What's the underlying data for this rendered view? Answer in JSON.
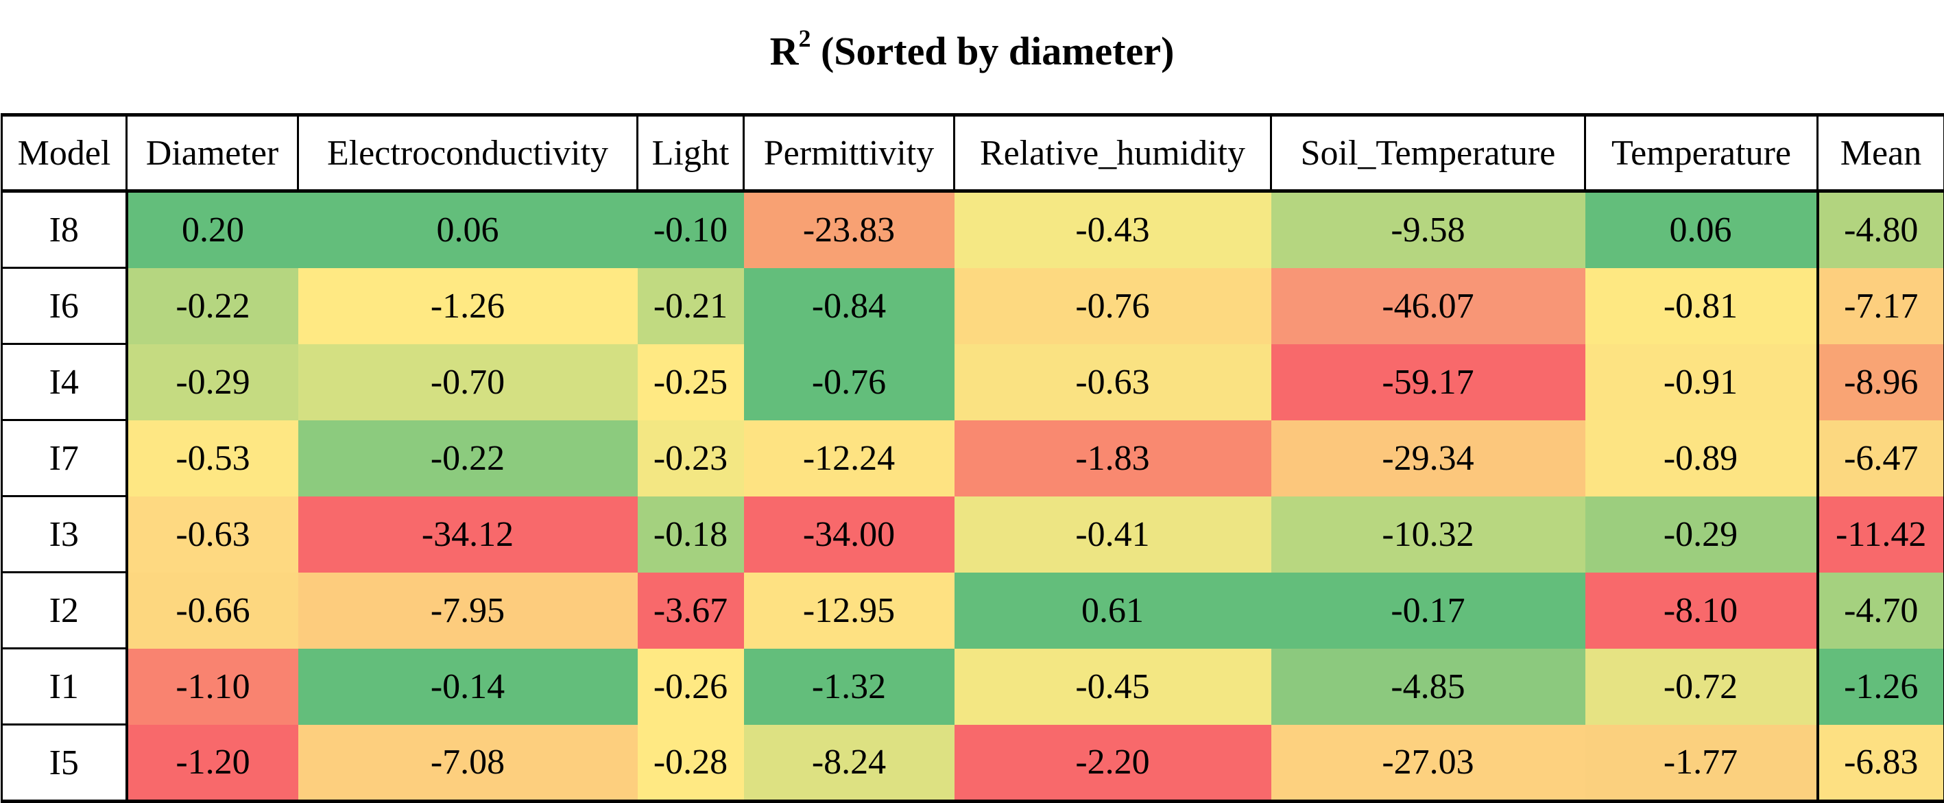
{
  "chart_data": {
    "type": "table",
    "title": "R",
    "title_sup": "2",
    "title_suffix": "(Sorted by diameter)",
    "columns": [
      "Model",
      "Diameter",
      "Electroconductivity",
      "Light",
      "Permittivity",
      "Relative_humidity",
      "Soil_Temperature",
      "Temperature",
      "Mean"
    ],
    "rows": [
      {
        "model": "I8",
        "values": [
          "0.20",
          "0.06",
          "-0.10",
          "-23.83",
          "-0.43",
          "-9.58",
          "0.06",
          "-4.80"
        ]
      },
      {
        "model": "I6",
        "values": [
          "-0.22",
          "-1.26",
          "-0.21",
          "-0.84",
          "-0.76",
          "-46.07",
          "-0.81",
          "-7.17"
        ]
      },
      {
        "model": "I4",
        "values": [
          "-0.29",
          "-0.70",
          "-0.25",
          "-0.76",
          "-0.63",
          "-59.17",
          "-0.91",
          "-8.96"
        ]
      },
      {
        "model": "I7",
        "values": [
          "-0.53",
          "-0.22",
          "-0.23",
          "-12.24",
          "-1.83",
          "-29.34",
          "-0.89",
          "-6.47"
        ]
      },
      {
        "model": "I3",
        "values": [
          "-0.63",
          "-34.12",
          "-0.18",
          "-34.00",
          "-0.41",
          "-10.32",
          "-0.29",
          "-11.42"
        ]
      },
      {
        "model": "I2",
        "values": [
          "-0.66",
          "-7.95",
          "-3.67",
          "-12.95",
          "0.61",
          "-0.17",
          "-8.10",
          "-4.70"
        ]
      },
      {
        "model": "I1",
        "values": [
          "-1.10",
          "-0.14",
          "-0.26",
          "-1.32",
          "-0.45",
          "-4.85",
          "-0.72",
          "-1.26"
        ]
      },
      {
        "model": "I5",
        "values": [
          "-1.20",
          "-7.08",
          "-0.28",
          "-8.24",
          "-2.20",
          "-27.03",
          "-1.77",
          "-6.83"
        ]
      }
    ],
    "colors": {
      "I8": [
        "#63be7b",
        "#63be7b",
        "#63be7b",
        "#f8a173",
        "#f5e884",
        "#b5d680",
        "#63be7b",
        "#b2d47f"
      ],
      "I6": [
        "#b5d680",
        "#ffe983",
        "#c1da81",
        "#63be7b",
        "#fdd980",
        "#f89676",
        "#fee882",
        "#fdcf7e"
      ],
      "I4": [
        "#c5db81",
        "#d4e082",
        "#ffe983",
        "#63be7b",
        "#fae282",
        "#f8696b",
        "#fde382",
        "#f9a474"
      ],
      "I7": [
        "#fee783",
        "#8ccb7e",
        "#f3e783",
        "#fee382",
        "#f98970",
        "#fcc77c",
        "#fde483",
        "#fcd880"
      ],
      "I3": [
        "#fed981",
        "#f8696b",
        "#a4d17f",
        "#f8696b",
        "#ede583",
        "#b8d780",
        "#9cce7e",
        "#f8696b"
      ],
      "I2": [
        "#fdd77f",
        "#fdcc7d",
        "#f8696b",
        "#fee182",
        "#63be7b",
        "#63be7b",
        "#f8696b",
        "#a5d17f"
      ],
      "I1": [
        "#f98370",
        "#63be7b",
        "#ffe983",
        "#63be7b",
        "#f3e783",
        "#8cc97e",
        "#e6e383",
        "#63be7b"
      ],
      "I5": [
        "#f8696b",
        "#fdcf7e",
        "#ffe983",
        "#dde182",
        "#f8696b",
        "#fdd17f",
        "#fbd07e",
        "#fde082"
      ]
    }
  }
}
